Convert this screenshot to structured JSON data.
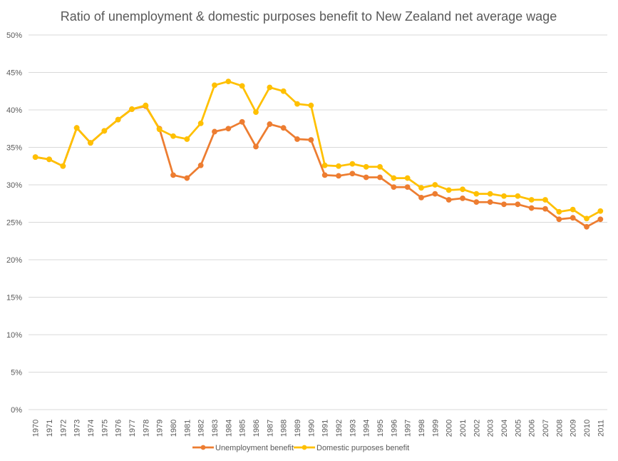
{
  "chart_data": {
    "type": "line",
    "title": "Ratio of unemployment & domestic purposes benefit to New Zealand net average wage",
    "xlabel": "",
    "ylabel": "",
    "ylim": [
      0,
      50
    ],
    "yticks": [
      "0%",
      "5%",
      "10%",
      "15%",
      "20%",
      "25%",
      "30%",
      "35%",
      "40%",
      "45%",
      "50%"
    ],
    "grid": true,
    "legend_position": "bottom",
    "x": [
      "1970",
      "1971",
      "1972",
      "1973",
      "1974",
      "1975",
      "1976",
      "1977",
      "1978",
      "1979",
      "1980",
      "1981",
      "1982",
      "1983",
      "1984",
      "1985",
      "1986",
      "1987",
      "1988",
      "1989",
      "1990",
      "1991",
      "1992",
      "1993",
      "1994",
      "1995",
      "1996",
      "1997",
      "1998",
      "1999",
      "2000",
      "2001",
      "2002",
      "2003",
      "2004",
      "2005",
      "2006",
      "2007",
      "2008",
      "2009",
      "2010",
      "2011"
    ],
    "series": [
      {
        "name": "Unemployment benefit",
        "color": "#ED7D31",
        "values": [
          33.7,
          33.4,
          32.5,
          37.6,
          35.6,
          37.2,
          38.7,
          40.1,
          40.5,
          37.5,
          31.3,
          30.9,
          32.6,
          37.1,
          37.5,
          38.4,
          35.1,
          38.1,
          37.6,
          36.1,
          36.0,
          31.3,
          31.2,
          31.5,
          31.0,
          31.0,
          29.7,
          29.7,
          28.3,
          28.8,
          28.0,
          28.2,
          27.7,
          27.7,
          27.4,
          27.4,
          26.9,
          26.8,
          25.4,
          25.6,
          24.4,
          25.4
        ]
      },
      {
        "name": "Domestic purposes benefit",
        "color": "#FFC000",
        "values": [
          33.7,
          33.4,
          32.5,
          37.6,
          35.6,
          37.2,
          38.7,
          40.1,
          40.6,
          37.4,
          36.5,
          36.1,
          38.2,
          43.3,
          43.8,
          43.2,
          39.7,
          43.0,
          42.5,
          40.8,
          40.6,
          32.6,
          32.5,
          32.8,
          32.4,
          32.4,
          30.9,
          30.9,
          29.6,
          30.0,
          29.3,
          29.4,
          28.8,
          28.8,
          28.5,
          28.5,
          28.0,
          28.0,
          26.4,
          26.7,
          25.5,
          26.5
        ]
      }
    ]
  }
}
